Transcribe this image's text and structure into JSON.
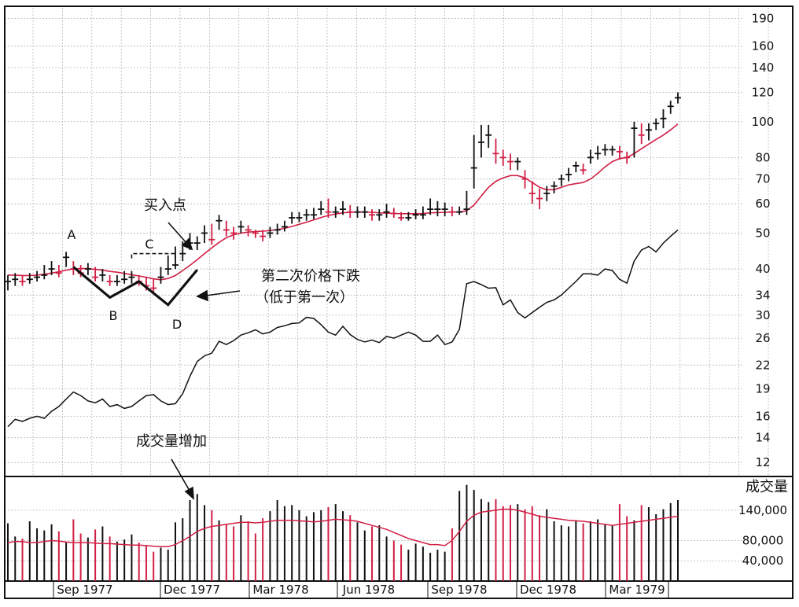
{
  "colors": {
    "up_bar": "#111111",
    "down_bar": "#d11f45",
    "moving_average": "#d11f45",
    "relative_strength": "#111111",
    "grid": "#b8b8b8",
    "frame": "#111111",
    "background": "#ffffff"
  },
  "chart_data": [
    {
      "type": "ohlc",
      "scale": "log",
      "ylim": [
        11,
        205
      ],
      "grid": true,
      "x_labels": [
        "Sep 1977",
        "Dec 1977",
        "Mar 1978",
        "Jun 1978",
        "Sep 1978",
        "Dec 1978",
        "Mar 1979"
      ],
      "y_ticks": [
        12,
        14,
        16,
        19,
        22,
        26,
        30,
        34,
        40,
        50,
        60,
        70,
        80,
        100,
        120,
        140,
        160,
        190
      ],
      "price_close": [
        37.0,
        37.5,
        37.0,
        37.5,
        38.0,
        38.5,
        40.0,
        39.0,
        43.0,
        40.0,
        39.0,
        40.0,
        38.0,
        38.5,
        37.0,
        37.0,
        37.5,
        38.0,
        37.0,
        36.0,
        35.5,
        38.0,
        40.0,
        41.0,
        44.0,
        47.0,
        47.0,
        50.0,
        48.0,
        54.0,
        51.0,
        50.0,
        52.0,
        51.0,
        50.0,
        49.0,
        50.0,
        51.0,
        52.0,
        55.0,
        55.0,
        56.0,
        56.0,
        58.0,
        57.0,
        57.0,
        58.0,
        57.0,
        57.0,
        57.0,
        56.0,
        56.0,
        57.0,
        56.5,
        55.0,
        55.0,
        56.0,
        56.0,
        58.0,
        58.0,
        58.0,
        57.0,
        57.0,
        58.0,
        75.0,
        88.0,
        92.0,
        82.0,
        80.0,
        78.0,
        78.0,
        70.0,
        64.0,
        62.0,
        64.0,
        67.0,
        70.0,
        72.0,
        76.0,
        74.0,
        80.0,
        82.0,
        84.0,
        84.0,
        83.0,
        80.0,
        96.0,
        92.0,
        95.0,
        99.0,
        102.0,
        110.0,
        116.0
      ],
      "price_range": [
        [
          35.0,
          38.5
        ],
        [
          36.0,
          39.0
        ],
        [
          36.0,
          38.5
        ],
        [
          36.5,
          39.0
        ],
        [
          37.0,
          39.5
        ],
        [
          37.5,
          41.0
        ],
        [
          38.5,
          42.0
        ],
        [
          38.0,
          41.0
        ],
        [
          40.5,
          44.5
        ],
        [
          38.5,
          42.0
        ],
        [
          38.0,
          41.0
        ],
        [
          38.5,
          41.5
        ],
        [
          37.0,
          40.5
        ],
        [
          37.0,
          40.0
        ],
        [
          36.0,
          38.5
        ],
        [
          36.0,
          38.5
        ],
        [
          36.5,
          39.5
        ],
        [
          36.5,
          39.5
        ],
        [
          36.0,
          38.5
        ],
        [
          35.0,
          38.0
        ],
        [
          34.5,
          37.5
        ],
        [
          36.5,
          40.5
        ],
        [
          38.5,
          43.5
        ],
        [
          40.0,
          46.0
        ],
        [
          42.0,
          47.5
        ],
        [
          45.0,
          50.0
        ],
        [
          45.0,
          49.0
        ],
        [
          47.0,
          52.5
        ],
        [
          46.5,
          53.0
        ],
        [
          51.0,
          56.0
        ],
        [
          49.0,
          54.0
        ],
        [
          48.0,
          52.0
        ],
        [
          50.0,
          54.0
        ],
        [
          49.0,
          52.5
        ],
        [
          48.5,
          51.0
        ],
        [
          47.5,
          51.0
        ],
        [
          48.5,
          52.0
        ],
        [
          49.5,
          53.0
        ],
        [
          50.5,
          54.0
        ],
        [
          53.0,
          57.0
        ],
        [
          53.5,
          57.0
        ],
        [
          54.0,
          58.0
        ],
        [
          54.5,
          58.5
        ],
        [
          56.0,
          61.0
        ],
        [
          55.0,
          62.0
        ],
        [
          55.0,
          59.0
        ],
        [
          56.0,
          61.0
        ],
        [
          55.0,
          59.5
        ],
        [
          55.0,
          59.0
        ],
        [
          55.0,
          59.0
        ],
        [
          54.0,
          58.0
        ],
        [
          54.0,
          58.0
        ],
        [
          55.0,
          60.0
        ],
        [
          55.0,
          58.5
        ],
        [
          54.0,
          57.0
        ],
        [
          54.0,
          57.0
        ],
        [
          54.5,
          58.0
        ],
        [
          54.5,
          59.0
        ],
        [
          56.0,
          62.0
        ],
        [
          55.5,
          61.0
        ],
        [
          55.5,
          60.5
        ],
        [
          55.5,
          59.0
        ],
        [
          56.0,
          59.0
        ],
        [
          56.0,
          65.0
        ],
        [
          66.0,
          92.0
        ],
        [
          80.0,
          98.0
        ],
        [
          85.0,
          98.0
        ],
        [
          77.0,
          90.0
        ],
        [
          76.0,
          84.0
        ],
        [
          74.0,
          82.0
        ],
        [
          74.0,
          80.0
        ],
        [
          66.0,
          74.0
        ],
        [
          60.0,
          69.0
        ],
        [
          58.0,
          66.0
        ],
        [
          61.0,
          67.0
        ],
        [
          64.0,
          69.0
        ],
        [
          67.0,
          72.0
        ],
        [
          69.0,
          75.0
        ],
        [
          73.0,
          78.0
        ],
        [
          72.0,
          77.0
        ],
        [
          77.0,
          84.0
        ],
        [
          79.0,
          86.0
        ],
        [
          81.0,
          87.0
        ],
        [
          81.0,
          86.0
        ],
        [
          79.0,
          86.0
        ],
        [
          77.0,
          83.0
        ],
        [
          80.0,
          100.0
        ],
        [
          87.0,
          99.0
        ],
        [
          89.0,
          99.0
        ],
        [
          95.0,
          102.0
        ],
        [
          96.0,
          108.0
        ],
        [
          105.0,
          114.0
        ],
        [
          112.0,
          120.0
        ]
      ],
      "moving_average": [
        38.5,
        38.5,
        38.4,
        38.4,
        38.5,
        38.7,
        39.0,
        39.3,
        39.7,
        40.0,
        40.1,
        40.1,
        39.9,
        39.7,
        39.4,
        39.2,
        38.9,
        38.6,
        38.3,
        38.0,
        37.6,
        37.4,
        37.7,
        38.4,
        39.6,
        40.9,
        42.4,
        44.0,
        45.6,
        47.2,
        48.6,
        49.5,
        50.0,
        50.3,
        50.5,
        50.6,
        50.8,
        51.1,
        51.5,
        52.1,
        52.8,
        53.5,
        54.3,
        55.1,
        55.8,
        56.3,
        56.7,
        56.9,
        57.0,
        57.0,
        56.9,
        56.7,
        56.6,
        56.5,
        56.4,
        56.4,
        56.4,
        56.5,
        56.7,
        56.8,
        56.9,
        57.0,
        57.0,
        57.5,
        59.5,
        63.0,
        66.5,
        69.0,
        70.5,
        71.5,
        71.5,
        70.5,
        68.5,
        66.5,
        65.5,
        65.5,
        66.5,
        67.5,
        68.0,
        68.5,
        70.0,
        72.5,
        75.5,
        78.0,
        79.5,
        80.0,
        82.0,
        84.5,
        87.0,
        89.5,
        92.0,
        95.0,
        98.5
      ],
      "relative_strength": [
        15.0,
        15.7,
        15.5,
        15.8,
        16.0,
        15.8,
        16.5,
        17.0,
        17.8,
        18.6,
        18.2,
        17.6,
        17.4,
        17.8,
        17.0,
        17.2,
        16.8,
        17.0,
        17.6,
        18.2,
        18.3,
        17.6,
        17.2,
        17.3,
        18.4,
        20.5,
        22.5,
        23.3,
        23.7,
        25.5,
        25.0,
        25.6,
        26.5,
        26.9,
        27.4,
        26.7,
        27.0,
        27.8,
        28.1,
        28.5,
        28.6,
        29.6,
        29.4,
        28.3,
        27.0,
        26.5,
        28.0,
        26.6,
        25.8,
        25.4,
        25.7,
        25.3,
        26.3,
        26.0,
        26.5,
        27.0,
        26.5,
        25.5,
        25.5,
        26.5,
        25.0,
        25.4,
        27.5,
        36.5,
        37.0,
        36.3,
        35.5,
        35.6,
        32.0,
        33.0,
        30.5,
        29.5,
        30.5,
        31.5,
        32.5,
        33.0,
        34.0,
        35.5,
        37.0,
        38.8,
        38.8,
        38.5,
        40.0,
        39.6,
        37.5,
        36.6,
        42.0,
        45.0,
        46.0,
        44.5,
        47.0,
        49.0,
        51.0
      ],
      "annotations": [
        {
          "id": "A",
          "text": "A"
        },
        {
          "id": "B",
          "text": "B"
        },
        {
          "id": "C",
          "text": "C"
        },
        {
          "id": "D",
          "text": "D"
        },
        {
          "id": "buy_point",
          "text": "买入点"
        },
        {
          "id": "second_decline_line1",
          "text": "第二次价格下跌"
        },
        {
          "id": "second_decline_line2",
          "text": "（低于第一次）"
        }
      ],
      "w_pattern_points": [
        [
          "A",
          40.5
        ],
        [
          "B",
          33.5
        ],
        [
          "C",
          37.0
        ],
        [
          "D",
          32.0
        ],
        [
          "end",
          39.8
        ]
      ],
      "pivot_line_level": 44.0
    },
    {
      "type": "bar",
      "title": "成交量",
      "y_ticks": [
        40000,
        80000,
        140000
      ],
      "y_tick_labels": [
        "40,000",
        "80,000",
        "140,000"
      ],
      "ylim": [
        0,
        205000
      ],
      "annotation": "成交量增加",
      "volumes": [
        114000,
        88000,
        84000,
        118000,
        104000,
        100000,
        112000,
        98000,
        76000,
        122000,
        94000,
        86000,
        102000,
        108000,
        88000,
        78000,
        82000,
        92000,
        76000,
        70000,
        58000,
        66000,
        62000,
        116000,
        124000,
        160000,
        172000,
        150000,
        140000,
        120000,
        112000,
        108000,
        130000,
        118000,
        94000,
        124000,
        138000,
        160000,
        148000,
        150000,
        140000,
        128000,
        136000,
        140000,
        146000,
        152000,
        138000,
        130000,
        116000,
        100000,
        108000,
        110000,
        88000,
        80000,
        72000,
        62000,
        74000,
        68000,
        56000,
        62000,
        58000,
        104000,
        178000,
        190000,
        180000,
        162000,
        156000,
        162000,
        148000,
        150000,
        152000,
        142000,
        148000,
        130000,
        142000,
        118000,
        110000,
        108000,
        120000,
        114000,
        118000,
        122000,
        112000,
        110000,
        152000,
        128000,
        120000,
        150000,
        146000,
        132000,
        142000,
        154000,
        160000
      ],
      "volume_ma": [
        76000,
        78000,
        78000,
        76000,
        76000,
        78000,
        80000,
        79000,
        77000,
        76000,
        76000,
        76000,
        75000,
        74000,
        74000,
        73000,
        72000,
        71000,
        71000,
        70000,
        69000,
        68000,
        68000,
        72000,
        80000,
        88000,
        98000,
        104000,
        108000,
        110000,
        112000,
        114000,
        116000,
        116000,
        115000,
        116000,
        118000,
        120000,
        120000,
        120000,
        119000,
        118000,
        117000,
        118000,
        120000,
        122000,
        121000,
        120000,
        118000,
        114000,
        110000,
        106000,
        102000,
        96000,
        90000,
        84000,
        80000,
        76000,
        72000,
        72000,
        70000,
        80000,
        98000,
        118000,
        130000,
        136000,
        138000,
        140000,
        142000,
        142000,
        140000,
        136000,
        132000,
        128000,
        126000,
        124000,
        122000,
        120000,
        119000,
        118000,
        116000,
        114000,
        112000,
        110000,
        112000,
        114000,
        116000,
        118000,
        120000,
        122000,
        124000,
        126000,
        128000
      ]
    }
  ]
}
